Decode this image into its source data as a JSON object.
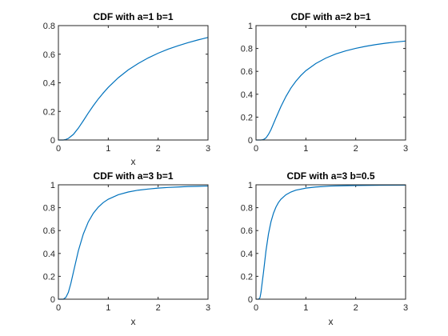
{
  "figure": {
    "background": "#ffffff",
    "axis_color": "#262626",
    "line_color": "#0072bd"
  },
  "chart_data": [
    {
      "type": "line",
      "title": "CDF with a=1 b=1",
      "xlabel": "x",
      "ylabel": "",
      "xlim": [
        0,
        3
      ],
      "ylim": [
        0,
        0.8
      ],
      "xticks": [
        0,
        1,
        2,
        3
      ],
      "yticks": [
        0,
        0.2,
        0.4,
        0.6,
        0.8
      ],
      "grid": false,
      "series": [
        {
          "x": [
            0,
            0.1,
            0.15,
            0.2,
            0.25,
            0.3,
            0.4,
            0.5,
            0.6,
            0.7,
            0.8,
            0.9,
            1.0,
            1.2,
            1.4,
            1.6,
            1.8,
            2.0,
            2.2,
            2.4,
            2.6,
            2.8,
            3.0
          ],
          "y": [
            0,
            0.0,
            0.004,
            0.011,
            0.025,
            0.039,
            0.083,
            0.135,
            0.189,
            0.24,
            0.287,
            0.329,
            0.368,
            0.435,
            0.49,
            0.535,
            0.574,
            0.607,
            0.635,
            0.659,
            0.681,
            0.7,
            0.717
          ]
        }
      ]
    },
    {
      "type": "line",
      "title": "CDF with a=2 b=1",
      "xlabel": "",
      "ylabel": "",
      "xlim": [
        0,
        3
      ],
      "ylim": [
        0,
        1
      ],
      "xticks": [
        0,
        1,
        2,
        3
      ],
      "yticks": [
        0,
        0.2,
        0.4,
        0.6,
        0.8,
        1
      ],
      "grid": false,
      "series": [
        {
          "x": [
            0,
            0.1,
            0.15,
            0.2,
            0.25,
            0.3,
            0.4,
            0.5,
            0.6,
            0.7,
            0.8,
            0.9,
            1.0,
            1.2,
            1.4,
            1.6,
            1.8,
            2.0,
            2.2,
            2.4,
            2.6,
            2.8,
            3.0
          ],
          "y": [
            0,
            0.0,
            0.004,
            0.018,
            0.049,
            0.09,
            0.193,
            0.293,
            0.38,
            0.454,
            0.514,
            0.564,
            0.606,
            0.669,
            0.716,
            0.752,
            0.779,
            0.801,
            0.819,
            0.834,
            0.846,
            0.856,
            0.865
          ]
        }
      ]
    },
    {
      "type": "line",
      "title": "CDF with a=3 b=1",
      "xlabel": "x",
      "ylabel": "",
      "xlim": [
        0,
        3
      ],
      "ylim": [
        0,
        1
      ],
      "xticks": [
        0,
        1,
        2,
        3
      ],
      "yticks": [
        0,
        0.2,
        0.4,
        0.6,
        0.8,
        1
      ],
      "grid": false,
      "series": [
        {
          "x": [
            0,
            0.1,
            0.15,
            0.2,
            0.25,
            0.3,
            0.4,
            0.5,
            0.6,
            0.7,
            0.8,
            0.9,
            1.0,
            1.2,
            1.4,
            1.6,
            1.8,
            2.0,
            2.2,
            2.4,
            2.6,
            2.8,
            3.0
          ],
          "y": [
            0,
            0.0,
            0.016,
            0.06,
            0.138,
            0.234,
            0.423,
            0.57,
            0.676,
            0.751,
            0.805,
            0.845,
            0.874,
            0.913,
            0.937,
            0.953,
            0.963,
            0.971,
            0.977,
            0.981,
            0.985,
            0.987,
            0.989
          ]
        }
      ]
    },
    {
      "type": "line",
      "title": "CDF with a=3 b=0.5",
      "xlabel": "x",
      "ylabel": "",
      "xlim": [
        0,
        3
      ],
      "ylim": [
        0,
        1
      ],
      "xticks": [
        0,
        1,
        2,
        3
      ],
      "yticks": [
        0,
        0.2,
        0.4,
        0.6,
        0.8,
        1
      ],
      "grid": false,
      "series": [
        {
          "x": [
            0,
            0.05,
            0.08,
            0.1,
            0.125,
            0.15,
            0.2,
            0.25,
            0.3,
            0.35,
            0.4,
            0.45,
            0.5,
            0.6,
            0.7,
            0.8,
            1.0,
            1.2,
            1.5,
            2.0,
            2.5,
            3.0
          ],
          "y": [
            0,
            0.0,
            0.013,
            0.06,
            0.148,
            0.234,
            0.423,
            0.57,
            0.676,
            0.751,
            0.805,
            0.845,
            0.874,
            0.913,
            0.937,
            0.953,
            0.971,
            0.981,
            0.989,
            0.994,
            0.996,
            0.997
          ]
        }
      ]
    }
  ]
}
